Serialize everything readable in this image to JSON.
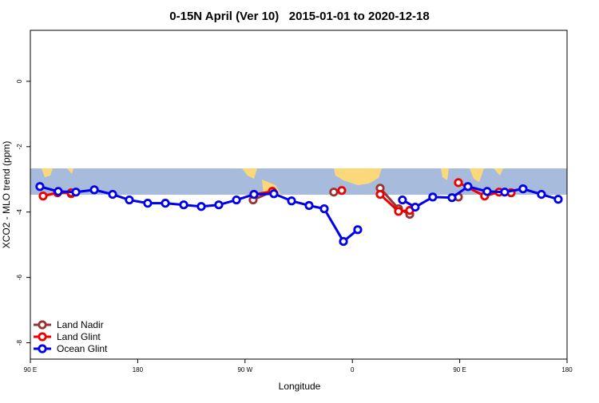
{
  "chart_data": {
    "type": "line",
    "title": "0-15N April (Ver 10)   2015-01-01 to 2020-12-18",
    "x_label": "Longitude",
    "y_label": "XCO2 - MLO trend (ppm)",
    "xlim": [
      90,
      540
    ],
    "ylim": [
      -8.5,
      1.56
    ],
    "xticks": [
      {
        "value": 90,
        "label": "90 E"
      },
      {
        "value": 180,
        "label": "180"
      },
      {
        "value": 270,
        "label": "90 W"
      },
      {
        "value": 360,
        "label": "0"
      },
      {
        "value": 450,
        "label": "90 E"
      },
      {
        "value": 540,
        "label": "180"
      }
    ],
    "yticks": [
      0,
      -2,
      -4,
      -6,
      -8
    ],
    "legend": "bottom-left",
    "series": [
      {
        "name": "Land Nadir",
        "color": "#993333",
        "x": [
          124.2,
          200,
          276.8,
          292.9,
          320,
          344.4,
          365,
          383.3,
          398.7,
          408.1,
          430,
          448.9,
          470,
          493.1
        ],
        "values": [
          -3.44,
          null,
          -3.63,
          -3.37,
          null,
          -3.39,
          null,
          -3.27,
          -3.9,
          -4.07,
          null,
          -3.54,
          null,
          -3.41
        ]
      },
      {
        "name": "Land Glint",
        "color": "#ee0000",
        "x": [
          100.7,
          112.8,
          124.2,
          200,
          277.5,
          292.9,
          320,
          351.1,
          365,
          383.3,
          398.7,
          408.1,
          430,
          448.9,
          470.9,
          483.0,
          493.1
        ],
        "values": [
          -3.51,
          -3.41,
          -3.41,
          null,
          -3.46,
          -3.37,
          null,
          -3.34,
          null,
          -3.46,
          -3.98,
          -3.95,
          null,
          -3.1,
          -3.51,
          -3.39,
          -3.41
        ]
      },
      {
        "name": "Ocean Glint",
        "color": "#0000ee",
        "x": [
          98.0,
          113.4,
          128.2,
          143.6,
          159.0,
          173.0,
          188.4,
          203.2,
          218.6,
          233.3,
          248.0,
          262.8,
          277.5,
          294.2,
          309.0,
          323.7,
          336.4,
          352.5,
          364.5,
          383,
          402.0,
          412.7,
          427.4,
          443.5,
          456.9,
          473.0,
          487.7,
          503.1,
          518.5,
          532.6
        ],
        "values": [
          -3.22,
          -3.37,
          -3.39,
          -3.32,
          -3.46,
          -3.63,
          -3.73,
          -3.73,
          -3.78,
          -3.83,
          -3.78,
          -3.63,
          -3.46,
          -3.44,
          -3.66,
          -3.8,
          -3.9,
          -4.9,
          -4.54,
          null,
          -3.63,
          -3.85,
          -3.54,
          -3.56,
          -3.22,
          -3.37,
          -3.39,
          -3.29,
          -3.46,
          -3.61
        ]
      }
    ]
  }
}
